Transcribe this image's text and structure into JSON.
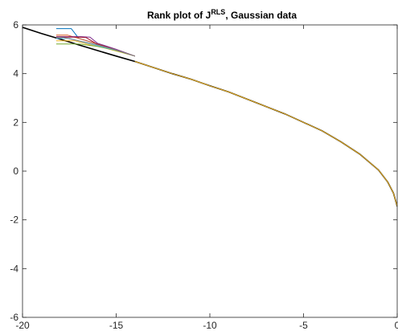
{
  "chart_data": {
    "type": "line",
    "title": "Rank plot of J",
    "title_superscript": "RLS",
    "title_suffix": ", Gaussian data",
    "xlabel": "",
    "ylabel": "",
    "xlim": [
      -20,
      0
    ],
    "ylim": [
      -6,
      6
    ],
    "xticks": [
      -20,
      -15,
      -10,
      -5,
      0
    ],
    "xtick_labels": [
      "-20",
      "-15",
      "-10",
      "-5",
      "0"
    ],
    "yticks": [
      -6,
      -4,
      -2,
      0,
      2,
      4,
      6
    ],
    "ytick_labels": [
      "-6",
      "-4",
      "-2",
      "0",
      "2",
      "4",
      "6"
    ],
    "grid": false,
    "legend": "none",
    "reference_line": {
      "color": "#000000",
      "x": [
        -20,
        -19,
        -18,
        -17,
        -16,
        -15,
        -14,
        -13,
        -12,
        -11,
        -10,
        -9,
        -8,
        -7,
        -6,
        -5,
        -4,
        -3,
        -2,
        -1,
        -0.5,
        -0.2,
        -0.05,
        0
      ],
      "y": [
        5.9,
        5.65,
        5.42,
        5.18,
        4.95,
        4.72,
        4.5,
        4.25,
        4.0,
        3.77,
        3.5,
        3.25,
        2.95,
        2.65,
        2.35,
        2.0,
        1.65,
        1.2,
        0.7,
        0.05,
        -0.45,
        -0.9,
        -1.3,
        -1.45
      ]
    },
    "series": [
      {
        "color": "#0072BD",
        "x": [
          -18.2,
          -17.4,
          -17.0,
          -16.0,
          -15.0,
          -14.0
        ],
        "y": [
          5.85,
          5.85,
          5.45,
          5.22,
          4.98,
          4.72
        ]
      },
      {
        "color": "#D95319",
        "x": [
          -18.2,
          -17.6,
          -16.8,
          -16.0,
          -15.0,
          -14.0
        ],
        "y": [
          5.58,
          5.58,
          5.4,
          5.22,
          4.98,
          4.72
        ]
      },
      {
        "color": "#EDB120",
        "x": [
          -18.2,
          -17.2,
          -16.5,
          -15.6,
          -15.0,
          -14.0
        ],
        "y": [
          5.35,
          5.35,
          5.2,
          5.05,
          4.93,
          4.72
        ]
      },
      {
        "color": "#7E2F8E",
        "x": [
          -18.2,
          -16.9,
          -16.4,
          -16.0,
          -15.0,
          -14.0
        ],
        "y": [
          5.52,
          5.52,
          5.5,
          5.25,
          5.0,
          4.72
        ]
      },
      {
        "color": "#77AC30",
        "x": [
          -18.2,
          -17.0,
          -16.0,
          -15.0,
          -14.0
        ],
        "y": [
          5.22,
          5.22,
          5.12,
          4.95,
          4.72
        ]
      },
      {
        "color": "#4DBEEE",
        "x": [
          -18.2,
          -17.5,
          -16.8,
          -16.0,
          -15.0,
          -14.0
        ],
        "y": [
          5.45,
          5.45,
          5.3,
          5.15,
          4.96,
          4.72
        ]
      },
      {
        "color": "#A2142F",
        "x": [
          -18.2,
          -17.0,
          -16.6,
          -16.0,
          -15.0,
          -14.0
        ],
        "y": [
          5.5,
          5.5,
          5.48,
          5.2,
          4.97,
          4.72
        ]
      },
      {
        "color": "#808080",
        "x": [
          -18.2,
          -17.8,
          -17.0,
          -16.0,
          -15.0,
          -14.0
        ],
        "y": [
          5.48,
          5.48,
          5.35,
          5.18,
          4.97,
          4.72
        ]
      },
      {
        "color": "#EDB120",
        "x": [
          -14.0,
          -13,
          -12,
          -11,
          -10,
          -9,
          -8,
          -7,
          -6,
          -5,
          -4,
          -3,
          -2,
          -1,
          -0.5,
          -0.2,
          -0.05,
          0
        ],
        "y": [
          4.5,
          4.25,
          4.0,
          3.77,
          3.5,
          3.25,
          2.95,
          2.65,
          2.35,
          2.0,
          1.65,
          1.2,
          0.7,
          0.05,
          -0.45,
          -0.9,
          -1.3,
          -1.45
        ]
      }
    ]
  }
}
